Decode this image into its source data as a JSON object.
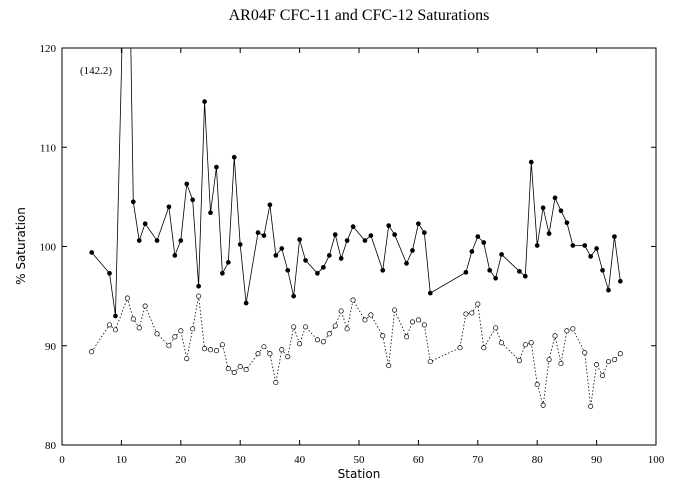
{
  "chart_data": {
    "type": "line",
    "title": "AR04F CFC-11 and CFC-12 Saturations",
    "xlabel": "Station",
    "ylabel": "% Saturation",
    "annotation": "(142.2)",
    "xlim": [
      0,
      100
    ],
    "xticks": [
      0,
      10,
      20,
      30,
      40,
      50,
      60,
      70,
      80,
      90,
      100
    ],
    "ylim": [
      80,
      120
    ],
    "yticks": [
      80,
      90,
      100,
      110,
      120
    ],
    "series": [
      {
        "name": "CFC-11",
        "color": "#000000",
        "marker": "filled",
        "dash": "solid",
        "x": [
          5,
          8,
          9,
          11,
          12,
          13,
          14,
          16,
          18,
          19,
          20,
          21,
          22,
          23,
          24,
          25,
          26,
          27,
          28,
          29,
          30,
          31,
          33,
          34,
          35,
          36,
          37,
          38,
          39,
          40,
          41,
          43,
          44,
          45,
          46,
          47,
          48,
          49,
          51,
          52,
          54,
          55,
          56,
          58,
          59,
          60,
          61,
          62,
          68,
          69,
          70,
          71,
          72,
          73,
          74,
          77,
          78,
          79,
          80,
          81,
          82,
          83,
          84,
          85,
          86,
          88,
          89,
          90,
          91,
          92,
          93,
          94
        ],
        "values": [
          99.4,
          97.3,
          93.0,
          142.2,
          104.5,
          100.6,
          102.3,
          100.6,
          104.0,
          99.1,
          100.6,
          106.3,
          104.7,
          96.0,
          114.6,
          103.4,
          108.0,
          97.3,
          98.4,
          109.0,
          100.2,
          94.3,
          101.4,
          101.1,
          104.2,
          99.1,
          99.8,
          97.6,
          95.0,
          100.7,
          98.6,
          97.3,
          97.9,
          99.1,
          101.2,
          98.8,
          100.6,
          102.0,
          100.6,
          101.1,
          97.6,
          102.1,
          101.2,
          98.3,
          99.6,
          102.3,
          101.4,
          95.3,
          97.4,
          99.5,
          101.0,
          100.4,
          97.6,
          96.8,
          99.2,
          97.5,
          97.0,
          108.5,
          100.1,
          103.9,
          101.3,
          104.9,
          103.6,
          102.4,
          100.1,
          100.1,
          99.0,
          99.8,
          97.6,
          95.6,
          101.0,
          96.5
        ]
      },
      {
        "name": "CFC-12",
        "color": "#000000",
        "marker": "open",
        "dash": "dotted",
        "x": [
          5,
          8,
          9,
          11,
          12,
          13,
          14,
          16,
          18,
          19,
          20,
          21,
          22,
          23,
          24,
          25,
          26,
          27,
          28,
          29,
          30,
          31,
          33,
          34,
          35,
          36,
          37,
          38,
          39,
          40,
          41,
          43,
          44,
          45,
          46,
          47,
          48,
          49,
          51,
          52,
          54,
          55,
          56,
          58,
          59,
          60,
          61,
          62,
          67,
          68,
          69,
          70,
          71,
          73,
          74,
          77,
          78,
          79,
          80,
          81,
          82,
          83,
          84,
          85,
          86,
          88,
          89,
          90,
          91,
          92,
          93,
          94
        ],
        "values": [
          89.4,
          92.1,
          91.6,
          94.8,
          92.7,
          91.8,
          94.0,
          91.2,
          90.0,
          90.9,
          91.5,
          88.7,
          91.7,
          95.0,
          89.7,
          89.6,
          89.5,
          90.1,
          87.7,
          87.3,
          87.9,
          87.6,
          89.2,
          89.9,
          89.2,
          86.3,
          89.6,
          88.9,
          91.9,
          90.2,
          91.9,
          90.6,
          90.4,
          91.2,
          92.0,
          93.5,
          91.7,
          94.6,
          92.6,
          93.1,
          91.0,
          88.0,
          93.6,
          90.9,
          92.4,
          92.6,
          92.1,
          88.4,
          89.8,
          93.2,
          93.3,
          94.2,
          89.8,
          91.8,
          90.3,
          88.5,
          90.1,
          90.3,
          86.1,
          84.0,
          88.6,
          91.0,
          88.2,
          91.5,
          91.7,
          89.3,
          83.9,
          88.1,
          87.0,
          88.4,
          88.6,
          89.2
        ]
      }
    ]
  }
}
